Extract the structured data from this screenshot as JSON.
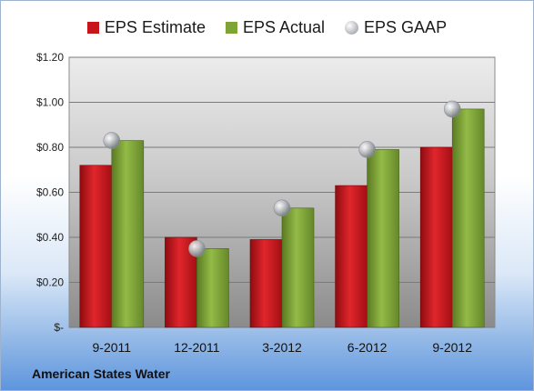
{
  "colors": {
    "estimate": "#c8141b",
    "actual": "#7fa436",
    "gaap": "#b9bcc1"
  },
  "legend": {
    "estimate_label": "EPS Estimate",
    "actual_label": "EPS Actual",
    "gaap_label": "EPS GAAP"
  },
  "footer": {
    "company": "American States Water"
  },
  "chart_data": {
    "type": "bar",
    "categories": [
      "9-2011",
      "12-2011",
      "3-2012",
      "6-2012",
      "9-2012"
    ],
    "series": [
      {
        "name": "EPS Estimate",
        "values": [
          0.72,
          0.4,
          0.39,
          0.63,
          0.8
        ]
      },
      {
        "name": "EPS Actual",
        "values": [
          0.83,
          0.35,
          0.53,
          0.79,
          0.97
        ]
      },
      {
        "name": "EPS GAAP",
        "type": "scatter",
        "values": [
          0.83,
          0.35,
          0.53,
          0.79,
          0.97
        ]
      }
    ],
    "ylim": [
      0,
      1.2
    ],
    "yticks": [
      0,
      0.2,
      0.4,
      0.6,
      0.8,
      1.0,
      1.2
    ],
    "ytick_labels": [
      "$-",
      "$0.20",
      "$0.40",
      "$0.60",
      "$0.80",
      "$1.00",
      "$1.20"
    ],
    "grid": true,
    "legend_position": "top"
  }
}
